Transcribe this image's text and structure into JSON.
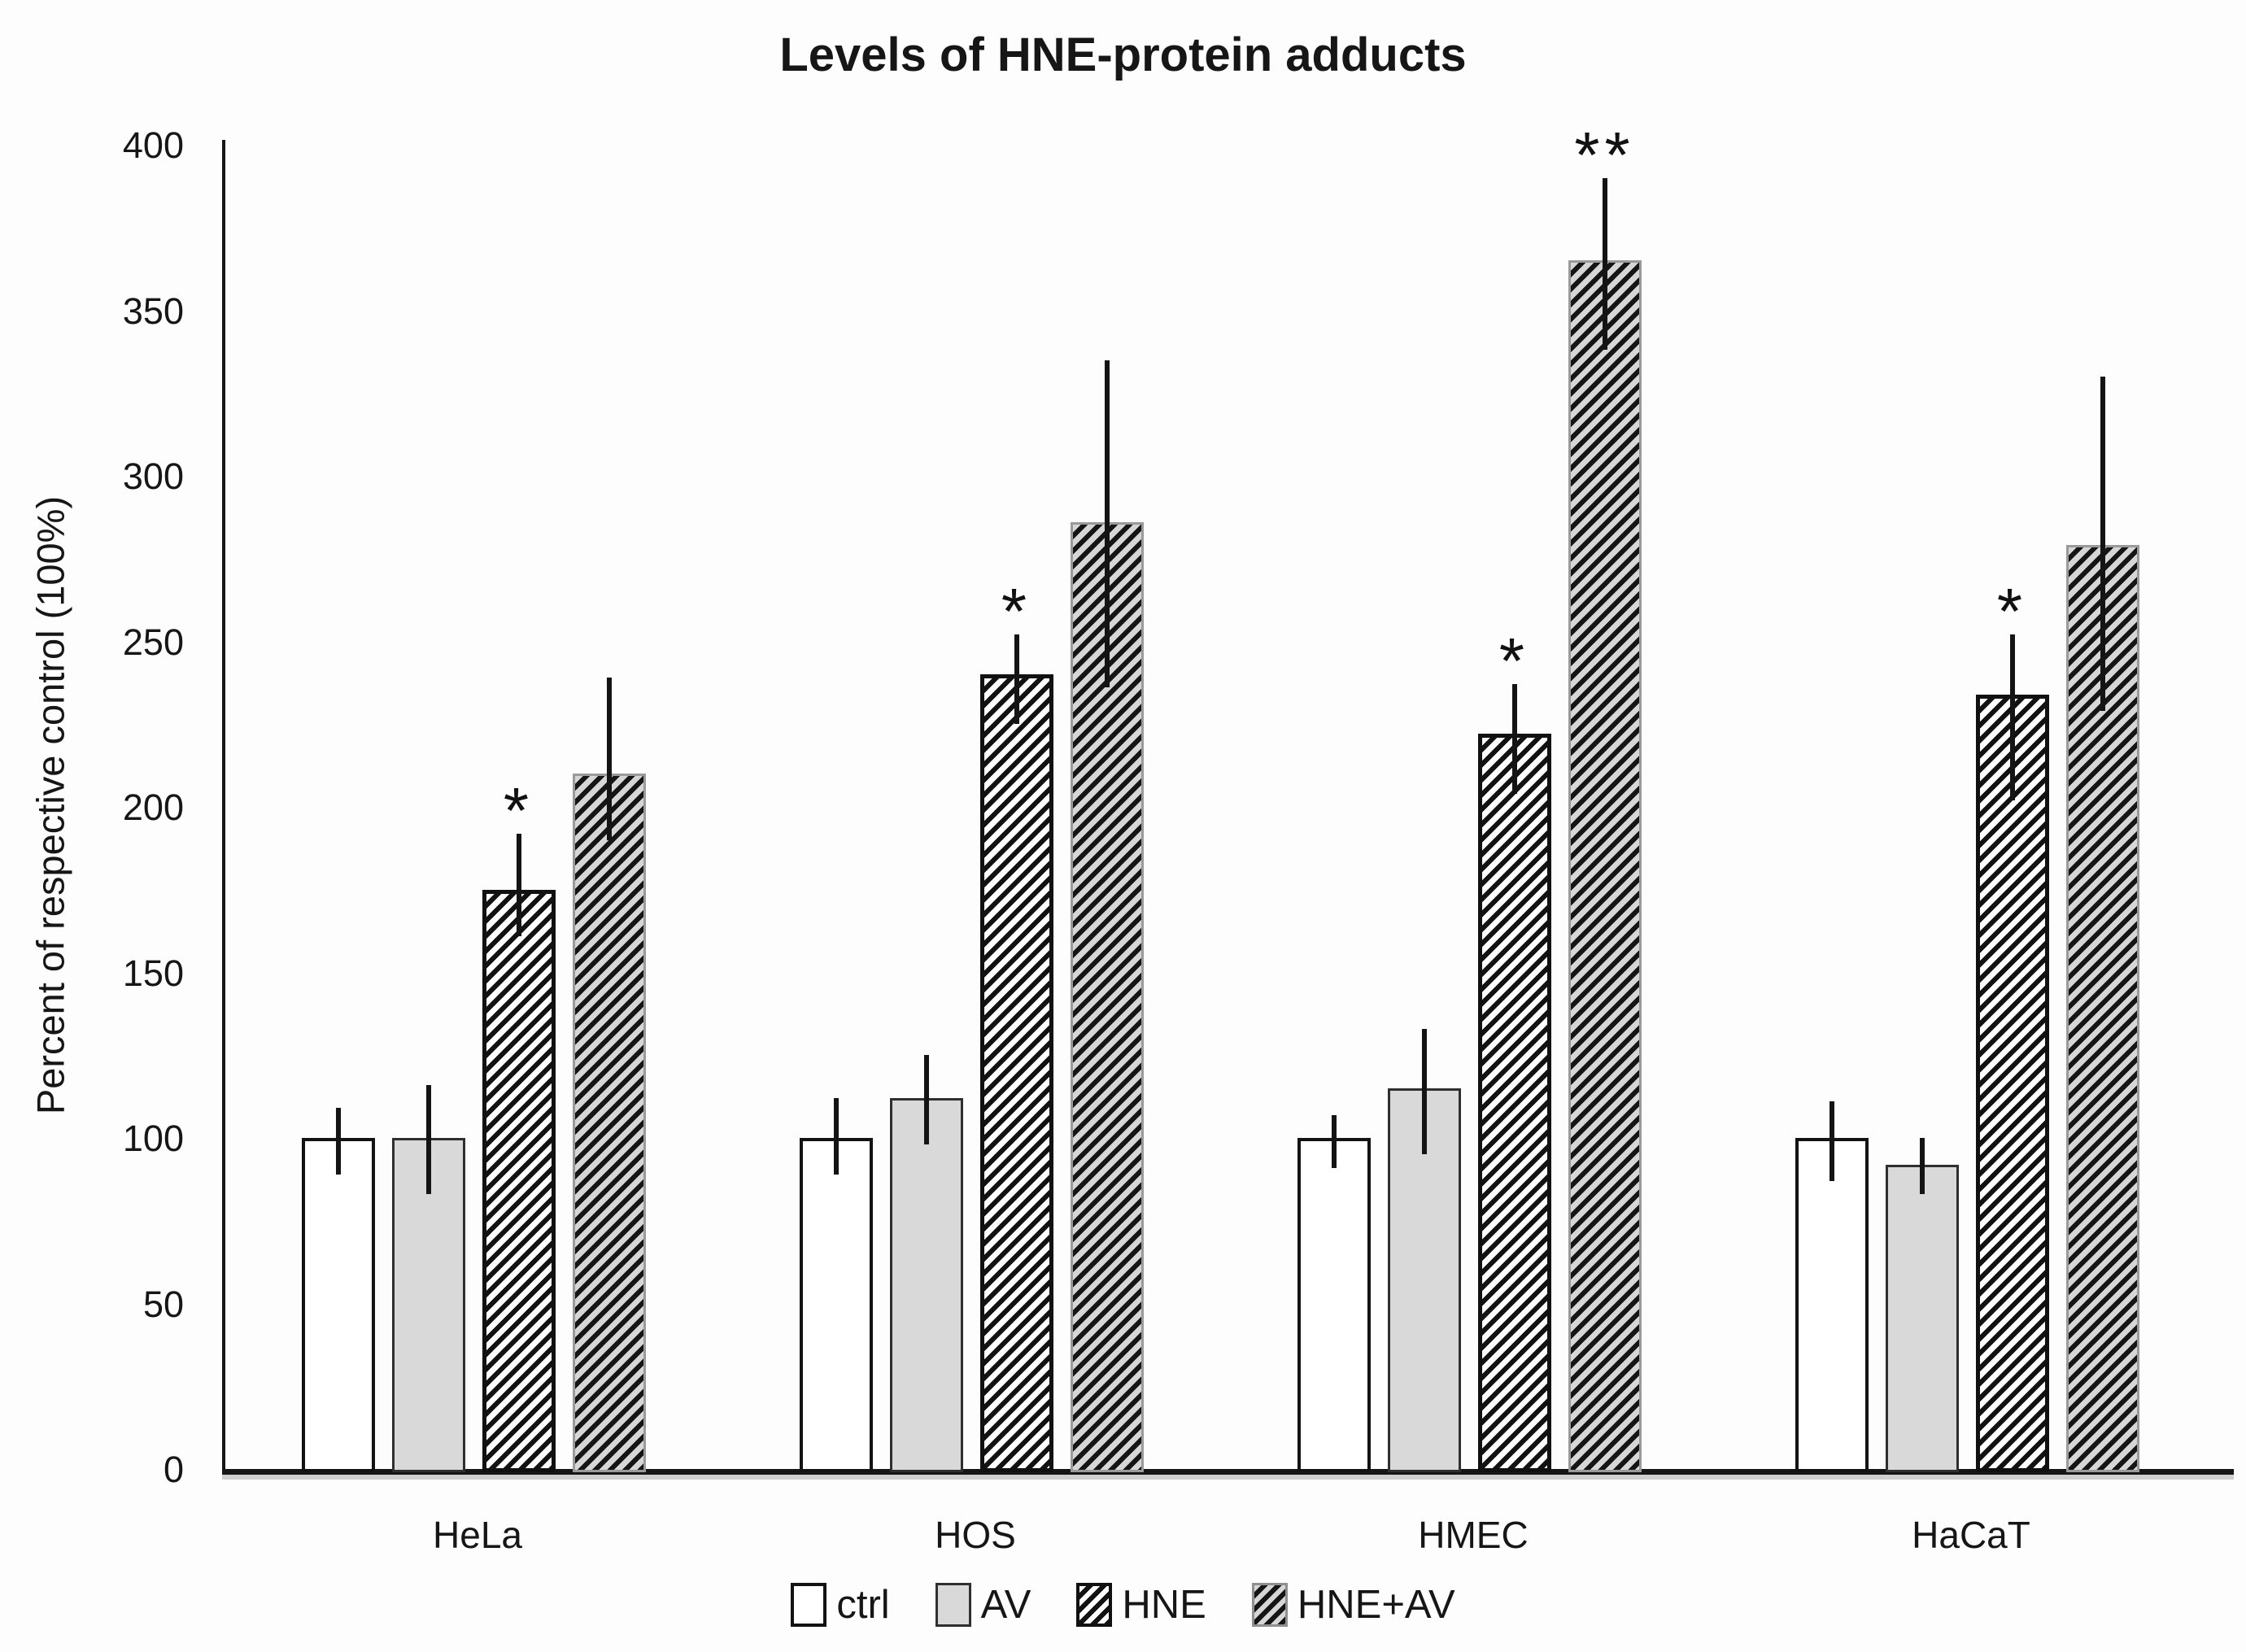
{
  "chart_data": {
    "type": "bar",
    "title": "Levels of HNE-protein adducts",
    "ylabel": "Percent of respective control (100%)",
    "xlabel": "",
    "ylim": [
      0,
      400
    ],
    "ytick_step": 50,
    "ytick_labels": [
      "0",
      "50",
      "100",
      "150",
      "200",
      "250",
      "300",
      "350",
      "400"
    ],
    "grid": false,
    "legend_position": "bottom",
    "categories": [
      "HeLa",
      "HOS",
      "HMEC",
      "HaCaT"
    ],
    "series": [
      {
        "name": "ctrl",
        "style": "plain-white",
        "values": [
          100,
          100,
          100,
          100
        ],
        "err_up": [
          9,
          12,
          7,
          11
        ],
        "err_down": [
          11,
          11,
          9,
          13
        ],
        "sig": [
          "",
          "",
          "",
          ""
        ]
      },
      {
        "name": "AV",
        "style": "plain-gray",
        "values": [
          100,
          112,
          115,
          92
        ],
        "err_up": [
          16,
          13,
          18,
          8
        ],
        "err_down": [
          17,
          14,
          20,
          9
        ],
        "sig": [
          "",
          "",
          "",
          ""
        ]
      },
      {
        "name": "HNE",
        "style": "hatch-white",
        "values": [
          175,
          240,
          222,
          234
        ],
        "err_up": [
          17,
          12,
          15,
          18
        ],
        "err_down": [
          14,
          15,
          18,
          32
        ],
        "sig": [
          "*",
          "*",
          "*",
          "*"
        ]
      },
      {
        "name": "HNE+AV",
        "style": "hatch-gray",
        "values": [
          210,
          286,
          365,
          279
        ],
        "err_up": [
          29,
          49,
          25,
          51
        ],
        "err_down": [
          20,
          50,
          27,
          50
        ],
        "sig": [
          "",
          "",
          "**",
          ""
        ]
      }
    ],
    "colors": {
      "ink": "#161616",
      "bar_white": "#ffffff",
      "bar_gray": "#d9d9d9",
      "hatch_stripe": "#121212",
      "hatch_gray_bg": "#d6d6d6",
      "axis_shadow": "#cfcfcf",
      "background": "#fdfdfd"
    }
  }
}
